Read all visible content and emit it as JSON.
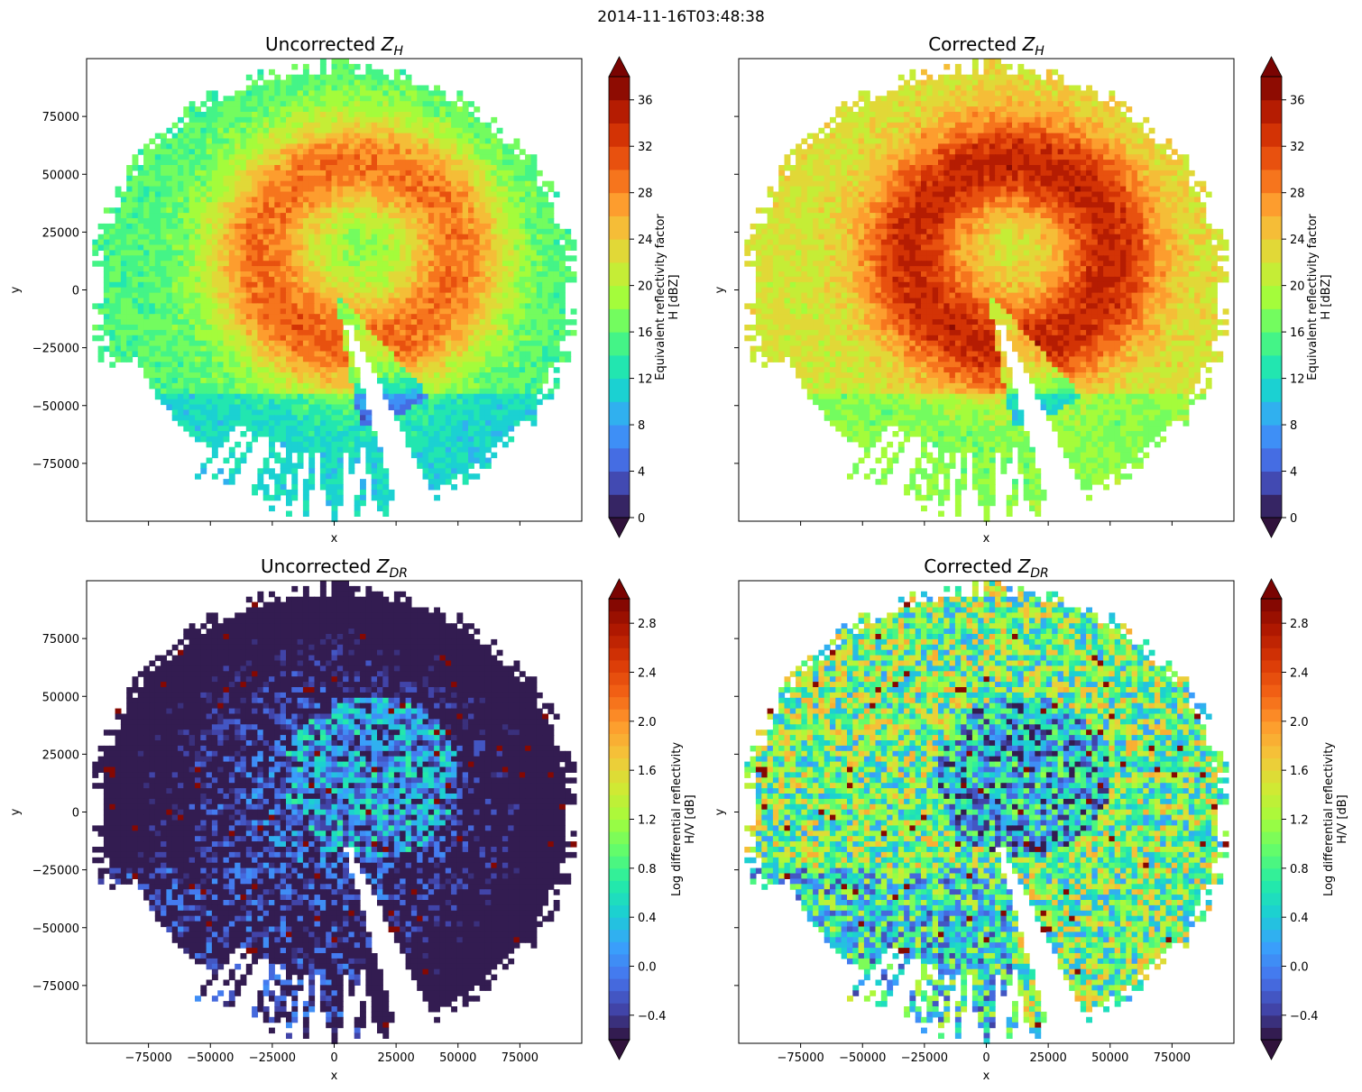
{
  "figure": {
    "suptitle": "2014-11-16T03:48:38"
  },
  "colormap": {
    "name": "turbo",
    "stops": [
      "#30123b",
      "#4145ab",
      "#4675ed",
      "#39a2fc",
      "#1bcfd4",
      "#24eca6",
      "#61fc6c",
      "#a4fc3b",
      "#d1e834",
      "#f3c63a",
      "#fe9b2d",
      "#f36315",
      "#d93806",
      "#b11901",
      "#7a0402"
    ],
    "extend": "both"
  },
  "chart_data": [
    {
      "type": "heatmap",
      "panel": "top-left",
      "title_main": "Uncorrected ",
      "title_sym": "Z",
      "title_sub": "H",
      "xlabel": "x",
      "ylabel": "y",
      "xlim": [
        -100000,
        100000
      ],
      "ylim": [
        -100000,
        100000
      ],
      "xticks": [
        -75000,
        -50000,
        -25000,
        0,
        25000,
        50000,
        75000
      ],
      "yticks": [
        75000,
        50000,
        25000,
        0,
        -25000,
        -50000,
        -75000
      ],
      "ytick_labels": [
        "75000",
        "50000",
        "25000",
        "0",
        "−25000",
        "−50000",
        "−75000"
      ],
      "colorbar": {
        "label_line1": "Equivalent reflectivity factor",
        "label_line2": "H [dBZ]",
        "range": [
          0,
          38
        ],
        "ticks": [
          0,
          4,
          8,
          12,
          16,
          20,
          24,
          28,
          32,
          36
        ],
        "tick_labels": [
          "0",
          "4",
          "8",
          "12",
          "16",
          "20",
          "24",
          "28",
          "32",
          "36"
        ],
        "levels": 19
      },
      "field": "zh_uncorrected"
    },
    {
      "type": "heatmap",
      "panel": "top-right",
      "title_main": "Corrected ",
      "title_sym": "Z",
      "title_sub": "H",
      "xlabel": "x",
      "ylabel": "y",
      "xlim": [
        -100000,
        100000
      ],
      "ylim": [
        -100000,
        100000
      ],
      "xticks": [
        -75000,
        -50000,
        -25000,
        0,
        25000,
        50000,
        75000
      ],
      "yticks": [
        75000,
        50000,
        25000,
        0,
        -25000,
        -50000,
        -75000
      ],
      "colorbar": {
        "label_line1": "Equivalent reflectivity factor",
        "label_line2": "H [dBZ]",
        "range": [
          0,
          38
        ],
        "ticks": [
          0,
          4,
          8,
          12,
          16,
          20,
          24,
          28,
          32,
          36
        ],
        "tick_labels": [
          "0",
          "4",
          "8",
          "12",
          "16",
          "20",
          "24",
          "28",
          "32",
          "36"
        ],
        "levels": 19
      },
      "field": "zh_corrected"
    },
    {
      "type": "heatmap",
      "panel": "bottom-left",
      "title_main": "Uncorrected ",
      "title_sym": "Z",
      "title_sub": "DR",
      "xlabel": "x",
      "ylabel": "y",
      "xlim": [
        -100000,
        100000
      ],
      "ylim": [
        -100000,
        100000
      ],
      "xticks": [
        -75000,
        -50000,
        -25000,
        0,
        25000,
        50000,
        75000
      ],
      "xtick_labels": [
        "−75000",
        "−50000",
        "−25000",
        "0",
        "25000",
        "50000",
        "75000"
      ],
      "yticks": [
        75000,
        50000,
        25000,
        0,
        -25000,
        -50000,
        -75000
      ],
      "ytick_labels": [
        "75000",
        "50000",
        "25000",
        "0",
        "−25000",
        "−50000",
        "−75000"
      ],
      "colorbar": {
        "label_line1": "Log differential reflectivity",
        "label_line2": "H/V [dB]",
        "range": [
          -0.6,
          3.0
        ],
        "ticks": [
          -0.4,
          0.0,
          0.4,
          0.8,
          1.2,
          1.6,
          2.0,
          2.4,
          2.8
        ],
        "tick_labels": [
          "−0.4",
          "0.0",
          "0.4",
          "0.8",
          "1.2",
          "1.6",
          "2.0",
          "2.4",
          "2.8"
        ],
        "levels": 36
      },
      "field": "zdr_uncorrected"
    },
    {
      "type": "heatmap",
      "panel": "bottom-right",
      "title_main": "Corrected ",
      "title_sym": "Z",
      "title_sub": "DR",
      "xlabel": "x",
      "ylabel": "y",
      "xlim": [
        -100000,
        100000
      ],
      "ylim": [
        -100000,
        100000
      ],
      "xticks": [
        -75000,
        -50000,
        -25000,
        0,
        25000,
        50000,
        75000
      ],
      "xtick_labels": [
        "−75000",
        "−50000",
        "−25000",
        "0",
        "25000",
        "50000",
        "75000"
      ],
      "yticks": [
        75000,
        50000,
        25000,
        0,
        -25000,
        -50000,
        -75000
      ],
      "colorbar": {
        "label_line1": "Log differential reflectivity",
        "label_line2": "H/V [dB]",
        "range": [
          -0.6,
          3.0
        ],
        "ticks": [
          -0.4,
          0.0,
          0.4,
          0.8,
          1.2,
          1.6,
          2.0,
          2.4,
          2.8
        ],
        "tick_labels": [
          "−0.4",
          "0.0",
          "0.4",
          "0.8",
          "1.2",
          "1.6",
          "2.0",
          "2.4",
          "2.8"
        ],
        "levels": 36
      },
      "field": "zdr_corrected"
    }
  ]
}
